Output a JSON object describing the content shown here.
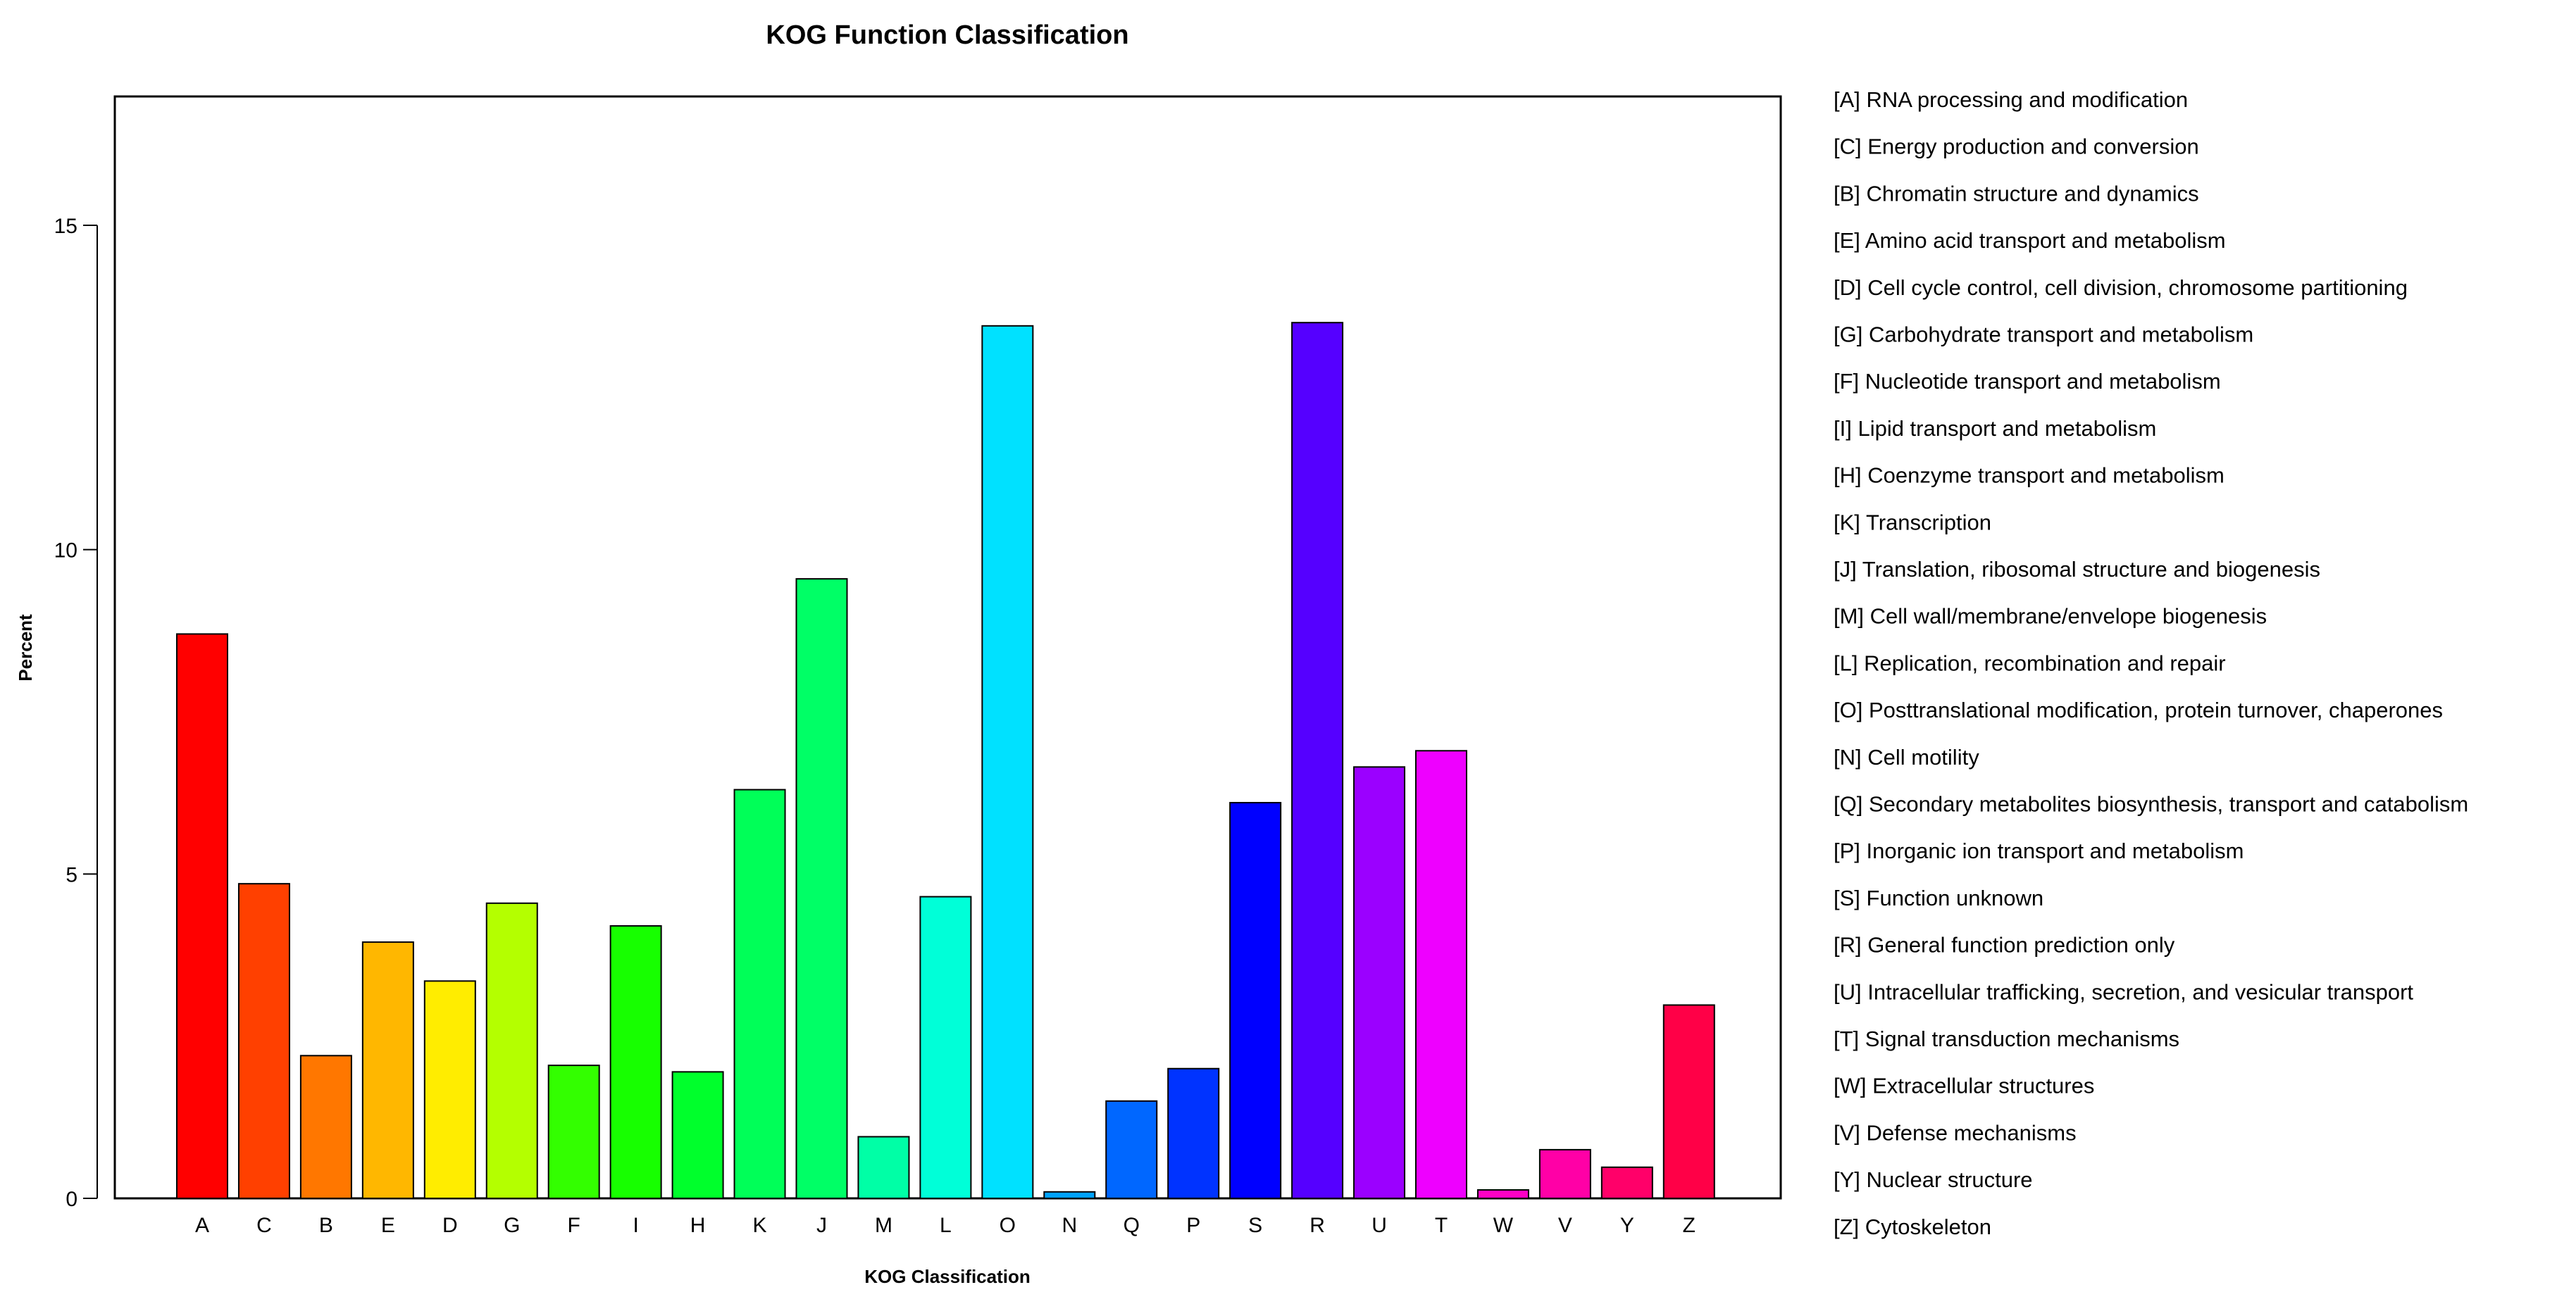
{
  "chart_data": {
    "type": "bar",
    "title": "KOG Function Classification",
    "xlabel": "KOG Classification",
    "ylabel": "Percent",
    "ylim": [
      0,
      17
    ],
    "yticks": [
      "0",
      "5",
      "10",
      "15"
    ],
    "grid": false,
    "legend_position": "right",
    "categories": [
      "A",
      "C",
      "B",
      "E",
      "D",
      "G",
      "F",
      "I",
      "H",
      "K",
      "J",
      "M",
      "L",
      "O",
      "N",
      "Q",
      "P",
      "S",
      "R",
      "U",
      "T",
      "W",
      "V",
      "Y",
      "Z"
    ],
    "values": [
      8.7,
      4.85,
      2.2,
      3.95,
      3.35,
      4.55,
      2.05,
      4.2,
      1.95,
      6.3,
      9.55,
      0.95,
      4.65,
      13.45,
      0.1,
      1.5,
      2.0,
      6.1,
      13.5,
      6.65,
      6.9,
      0.13,
      0.75,
      0.48,
      2.98
    ],
    "colors": [
      "#ff0000",
      "#ff4000",
      "#ff7700",
      "#ffb700",
      "#ffed00",
      "#b4ff00",
      "#33ff00",
      "#17ff00",
      "#00ff2c",
      "#00ff58",
      "#00ff66",
      "#00ffa6",
      "#00ffd8",
      "#00e1ff",
      "#00a2ff",
      "#0067ff",
      "#0033ff",
      "#0000ff",
      "#5500ff",
      "#9b00ff",
      "#ee00ff",
      "#ff00c5",
      "#ff00a6",
      "#ff0069",
      "#ff0047"
    ],
    "legend": [
      "[A] RNA processing and modification",
      "[C] Energy production and conversion",
      "[B] Chromatin structure and dynamics",
      "[E] Amino acid transport and metabolism",
      "[D] Cell cycle control, cell division, chromosome partitioning",
      "[G] Carbohydrate transport and metabolism",
      "[F] Nucleotide transport and metabolism",
      "[I] Lipid transport and metabolism",
      "[H] Coenzyme transport and metabolism",
      "[K] Transcription",
      "[J] Translation, ribosomal structure and biogenesis",
      "[M] Cell wall/membrane/envelope biogenesis",
      "[L] Replication, recombination and repair",
      "[O] Posttranslational modification, protein turnover, chaperones",
      "[N] Cell motility",
      "[Q] Secondary metabolites biosynthesis, transport and catabolism",
      "[P] Inorganic ion transport and metabolism",
      "[S] Function unknown",
      "[R] General function prediction only",
      "[U] Intracellular trafficking, secretion, and vesicular transport",
      "[T] Signal transduction mechanisms",
      "[W] Extracellular structures",
      "[V] Defense mechanisms",
      "[Y] Nuclear structure",
      "[Z] Cytoskeleton"
    ]
  }
}
